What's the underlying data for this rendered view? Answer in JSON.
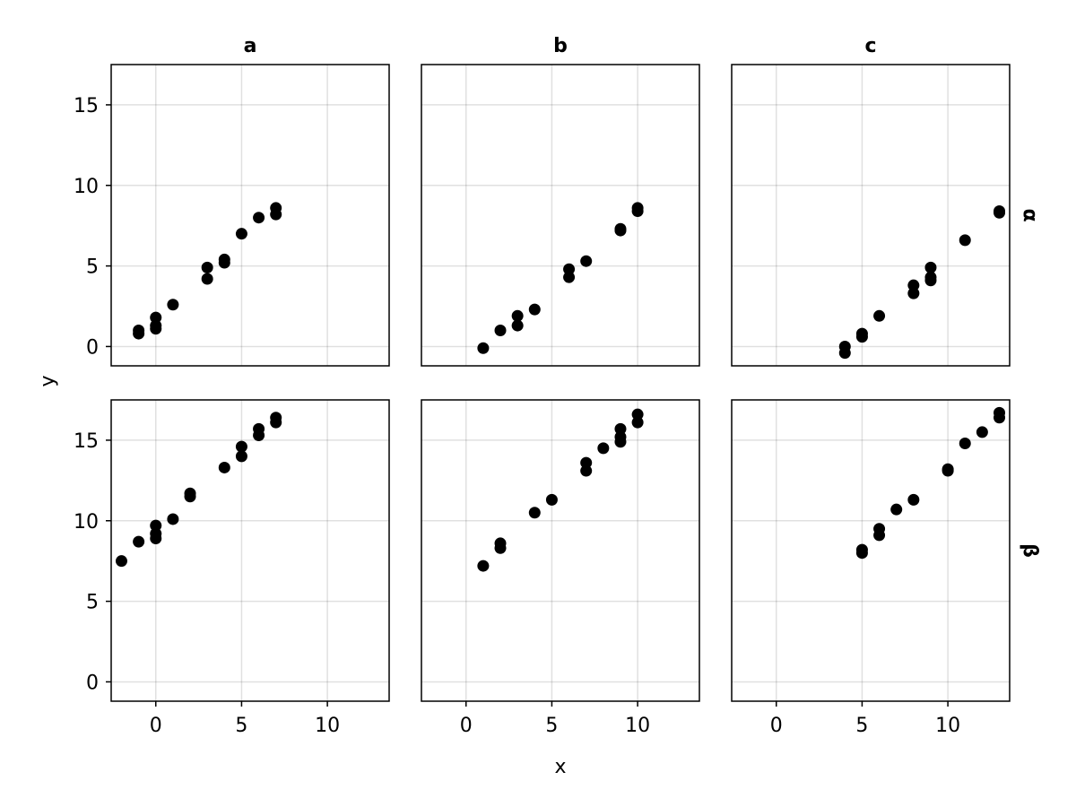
{
  "chart_data": {
    "type": "scatter",
    "xlabel": "x",
    "ylabel": "y",
    "columns": [
      "a",
      "b",
      "c"
    ],
    "rows": [
      "α",
      "β"
    ],
    "xlim": [
      -2.6,
      13.6
    ],
    "ylim": [
      -1.2,
      17.5
    ],
    "xticks": [
      0,
      5,
      10
    ],
    "yticks": [
      0,
      5,
      10,
      15
    ],
    "grid": true,
    "point_color": "#000000",
    "panels": [
      {
        "column": "a",
        "row": "α",
        "points": [
          {
            "x": -1,
            "y": 0.8
          },
          {
            "x": -1,
            "y": 1.0
          },
          {
            "x": 0,
            "y": 1.1
          },
          {
            "x": 0,
            "y": 1.3
          },
          {
            "x": 0,
            "y": 1.8
          },
          {
            "x": 1,
            "y": 2.6
          },
          {
            "x": 3,
            "y": 4.2
          },
          {
            "x": 3,
            "y": 4.9
          },
          {
            "x": 4,
            "y": 5.2
          },
          {
            "x": 4,
            "y": 5.4
          },
          {
            "x": 5,
            "y": 7.0
          },
          {
            "x": 6,
            "y": 8.0
          },
          {
            "x": 7,
            "y": 8.2
          },
          {
            "x": 7,
            "y": 8.6
          }
        ]
      },
      {
        "column": "b",
        "row": "α",
        "points": [
          {
            "x": 1,
            "y": -0.1
          },
          {
            "x": 2,
            "y": 1.0
          },
          {
            "x": 3,
            "y": 1.3
          },
          {
            "x": 3,
            "y": 1.9
          },
          {
            "x": 4,
            "y": 2.3
          },
          {
            "x": 6,
            "y": 4.3
          },
          {
            "x": 6,
            "y": 4.8
          },
          {
            "x": 7,
            "y": 5.3
          },
          {
            "x": 9,
            "y": 7.2
          },
          {
            "x": 9,
            "y": 7.3
          },
          {
            "x": 10,
            "y": 8.4
          },
          {
            "x": 10,
            "y": 8.6
          }
        ]
      },
      {
        "column": "c",
        "row": "α",
        "points": [
          {
            "x": 4,
            "y": -0.4
          },
          {
            "x": 4,
            "y": 0.0
          },
          {
            "x": 5,
            "y": 0.6
          },
          {
            "x": 5,
            "y": 0.8
          },
          {
            "x": 6,
            "y": 1.9
          },
          {
            "x": 8,
            "y": 3.3
          },
          {
            "x": 8,
            "y": 3.8
          },
          {
            "x": 9,
            "y": 4.1
          },
          {
            "x": 9,
            "y": 4.3
          },
          {
            "x": 9,
            "y": 4.9
          },
          {
            "x": 11,
            "y": 6.6
          },
          {
            "x": 13,
            "y": 8.3
          },
          {
            "x": 13,
            "y": 8.4
          }
        ]
      },
      {
        "column": "a",
        "row": "β",
        "points": [
          {
            "x": -2,
            "y": 7.5
          },
          {
            "x": -1,
            "y": 8.7
          },
          {
            "x": 0,
            "y": 8.9
          },
          {
            "x": 0,
            "y": 9.2
          },
          {
            "x": 0,
            "y": 9.7
          },
          {
            "x": 1,
            "y": 10.1
          },
          {
            "x": 2,
            "y": 11.5
          },
          {
            "x": 2,
            "y": 11.7
          },
          {
            "x": 4,
            "y": 13.3
          },
          {
            "x": 5,
            "y": 14.0
          },
          {
            "x": 5,
            "y": 14.6
          },
          {
            "x": 6,
            "y": 15.3
          },
          {
            "x": 6,
            "y": 15.7
          },
          {
            "x": 7,
            "y": 16.1
          },
          {
            "x": 7,
            "y": 16.4
          }
        ]
      },
      {
        "column": "b",
        "row": "β",
        "points": [
          {
            "x": 1,
            "y": 7.2
          },
          {
            "x": 2,
            "y": 8.3
          },
          {
            "x": 2,
            "y": 8.6
          },
          {
            "x": 4,
            "y": 10.5
          },
          {
            "x": 5,
            "y": 11.3
          },
          {
            "x": 7,
            "y": 13.1
          },
          {
            "x": 7,
            "y": 13.6
          },
          {
            "x": 8,
            "y": 14.5
          },
          {
            "x": 9,
            "y": 14.9
          },
          {
            "x": 9,
            "y": 15.2
          },
          {
            "x": 9,
            "y": 15.7
          },
          {
            "x": 10,
            "y": 16.1
          },
          {
            "x": 10,
            "y": 16.6
          }
        ]
      },
      {
        "column": "c",
        "row": "β",
        "points": [
          {
            "x": 5,
            "y": 8.0
          },
          {
            "x": 5,
            "y": 8.2
          },
          {
            "x": 6,
            "y": 9.1
          },
          {
            "x": 6,
            "y": 9.5
          },
          {
            "x": 7,
            "y": 10.7
          },
          {
            "x": 8,
            "y": 11.3
          },
          {
            "x": 10,
            "y": 13.1
          },
          {
            "x": 10,
            "y": 13.2
          },
          {
            "x": 11,
            "y": 14.8
          },
          {
            "x": 12,
            "y": 15.5
          },
          {
            "x": 13,
            "y": 16.4
          },
          {
            "x": 13,
            "y": 16.7
          }
        ]
      }
    ]
  }
}
